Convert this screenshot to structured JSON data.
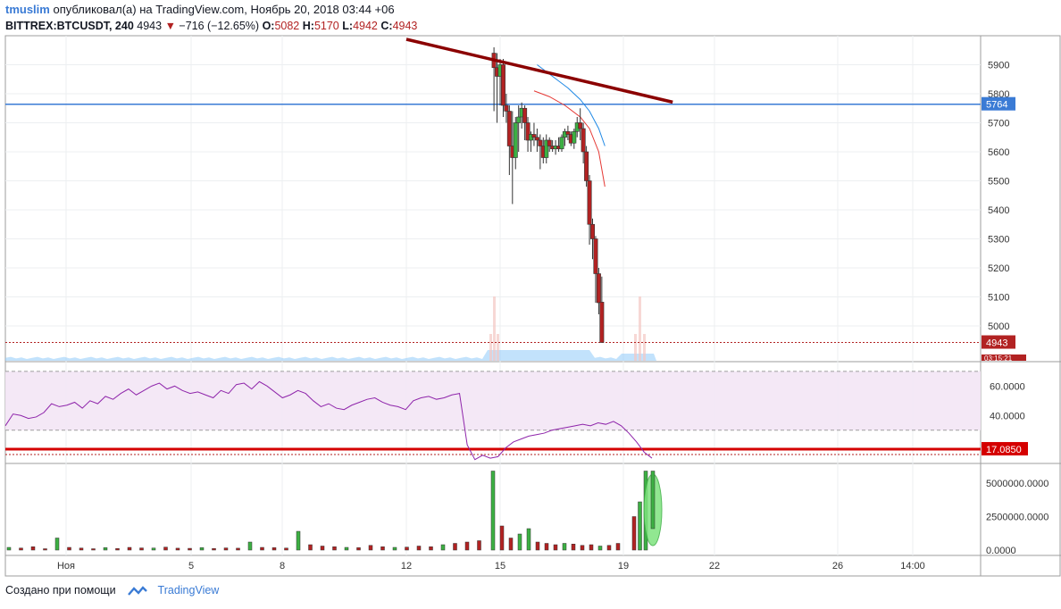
{
  "header": {
    "user": "tmuslim",
    "published": "опубликовал(а) на TradingView.com, Ноябрь 20, 2018 03:44 +06",
    "symbol": "BITTREX:BTCUSDT, 240",
    "last": "4943",
    "change": "−716 (−12.65%)",
    "o_label": "O:",
    "o_val": "5082",
    "h_label": "H:",
    "h_val": "5170",
    "l_label": "L:",
    "l_val": "4942",
    "c_label": "C:",
    "c_val": "4943"
  },
  "footer": {
    "created_with": "Создано при помощи",
    "brand": "TradingView"
  },
  "colors": {
    "up": "#3cb043",
    "down": "#b22222",
    "hline": "#3a7bd5",
    "trend": "#8b0000",
    "rsi": "#8e24aa",
    "ema_fast": "#e53935",
    "ema_slow": "#1e88e5"
  },
  "chart_data": [
    {
      "type": "line",
      "name": "price",
      "ylim": [
        4880,
        6000
      ],
      "y_ticks": [
        "5900",
        "5800",
        "5700",
        "5600",
        "5500",
        "5400",
        "5300",
        "5200",
        "5100",
        "5000"
      ],
      "x_ticks": [
        "Ноя",
        "5",
        "8",
        "12",
        "15",
        "19",
        "22",
        "26",
        "14:00"
      ],
      "labels": {
        "hline_value": "5764",
        "last_price": "4943",
        "timer": "03:15:21"
      },
      "hline": 5764,
      "last_price": 4943,
      "trendline": [
        [
          -2.5,
          5950
        ],
        [
          20.6,
          5765
        ]
      ],
      "candles": [
        [
          14.8,
          5940,
          5960,
          5740,
          5890
        ],
        [
          14.9,
          5890,
          5940,
          5700,
          5860
        ],
        [
          15.0,
          5860,
          5920,
          5760,
          5900
        ],
        [
          15.1,
          5900,
          5920,
          5720,
          5760
        ],
        [
          15.2,
          5760,
          5800,
          5700,
          5740
        ],
        [
          15.3,
          5740,
          5760,
          5520,
          5620
        ],
        [
          15.4,
          5620,
          5740,
          5420,
          5580
        ],
        [
          15.5,
          5580,
          5720,
          5540,
          5700
        ],
        [
          15.6,
          5700,
          5760,
          5600,
          5720
        ],
        [
          15.7,
          5720,
          5770,
          5680,
          5750
        ],
        [
          15.8,
          5750,
          5760,
          5640,
          5700
        ],
        [
          15.9,
          5700,
          5720,
          5600,
          5640
        ],
        [
          16.0,
          5640,
          5670,
          5600,
          5660
        ],
        [
          16.1,
          5660,
          5700,
          5620,
          5650
        ],
        [
          16.2,
          5650,
          5680,
          5600,
          5640
        ],
        [
          16.3,
          5640,
          5660,
          5540,
          5620
        ],
        [
          16.4,
          5620,
          5650,
          5560,
          5580
        ],
        [
          16.5,
          5580,
          5660,
          5560,
          5640
        ],
        [
          16.6,
          5640,
          5650,
          5600,
          5620
        ],
        [
          16.7,
          5620,
          5640,
          5600,
          5610
        ],
        [
          16.8,
          5610,
          5640,
          5590,
          5620
        ],
        [
          16.9,
          5620,
          5650,
          5600,
          5610
        ],
        [
          17.0,
          5610,
          5660,
          5600,
          5650
        ],
        [
          17.1,
          5650,
          5680,
          5620,
          5670
        ],
        [
          17.2,
          5670,
          5690,
          5640,
          5660
        ],
        [
          17.3,
          5660,
          5670,
          5620,
          5630
        ],
        [
          17.4,
          5630,
          5680,
          5610,
          5670
        ],
        [
          17.5,
          5670,
          5720,
          5650,
          5700
        ],
        [
          17.6,
          5700,
          5750,
          5640,
          5680
        ],
        [
          17.7,
          5680,
          5700,
          5560,
          5600
        ],
        [
          17.8,
          5600,
          5620,
          5480,
          5500
        ],
        [
          17.9,
          5500,
          5520,
          5280,
          5350
        ],
        [
          18.0,
          5350,
          5370,
          5230,
          5300
        ],
        [
          18.1,
          5300,
          5310,
          5080,
          5180
        ],
        [
          18.2,
          5180,
          5200,
          5040,
          5080
        ],
        [
          18.3,
          5082,
          5170,
          4942,
          4943
        ]
      ],
      "ema_fast": [
        [
          16.1,
          5810
        ],
        [
          16.6,
          5790
        ],
        [
          17.1,
          5760
        ],
        [
          17.6,
          5720
        ],
        [
          17.9,
          5680
        ],
        [
          18.2,
          5600
        ],
        [
          18.4,
          5480
        ]
      ],
      "ema_slow": [
        [
          16.2,
          5900
        ],
        [
          16.7,
          5860
        ],
        [
          17.2,
          5820
        ],
        [
          17.6,
          5780
        ],
        [
          17.9,
          5740
        ],
        [
          18.2,
          5680
        ],
        [
          18.4,
          5620
        ]
      ],
      "volume_profile_label": "volume"
    },
    {
      "type": "line",
      "name": "RSI",
      "ylim": [
        8,
        76
      ],
      "y_ticks": [
        "60.0000",
        "40.0000"
      ],
      "level_label": "17.0850",
      "level": 17.085,
      "band": [
        30,
        70
      ],
      "values": [
        33,
        41,
        40,
        38,
        39,
        42,
        48,
        46,
        47,
        49,
        45,
        50,
        48,
        53,
        51,
        55,
        58,
        54,
        57,
        60,
        62,
        58,
        60,
        57,
        55,
        56,
        54,
        52,
        57,
        55,
        61,
        62,
        58,
        63,
        60,
        56,
        52,
        54,
        57,
        55,
        50,
        46,
        48,
        45,
        44,
        47,
        49,
        51,
        52,
        49,
        47,
        46,
        44,
        50,
        52,
        53,
        51,
        52,
        54,
        55,
        20,
        10,
        13,
        11,
        12,
        18,
        22,
        24,
        26,
        27,
        28,
        30,
        31,
        32,
        33,
        34,
        33,
        35,
        34,
        36,
        33,
        28,
        22,
        15,
        11
      ]
    },
    {
      "type": "bar",
      "name": "volume_delta",
      "ylim": [
        -400000,
        6400000
      ],
      "y_ticks": [
        "5000000.0000",
        "2500000.0000",
        "0.0000"
      ],
      "values": [
        200000,
        150000,
        250000,
        100000,
        900000,
        200000,
        150000,
        100000,
        180000,
        120000,
        200000,
        160000,
        150000,
        220000,
        140000,
        130000,
        180000,
        120000,
        160000,
        140000,
        600000,
        200000,
        180000,
        150000,
        1400000,
        400000,
        300000,
        250000,
        200000,
        180000,
        350000,
        250000,
        200000,
        220000,
        300000,
        250000,
        400000,
        500000,
        600000,
        700000,
        5900000,
        1800000,
        900000,
        1200000,
        1600000,
        600000,
        500000,
        400000,
        500000,
        450000,
        350000,
        400000,
        300000,
        350000,
        500000,
        2500000,
        3600000,
        5900000
      ]
    }
  ]
}
